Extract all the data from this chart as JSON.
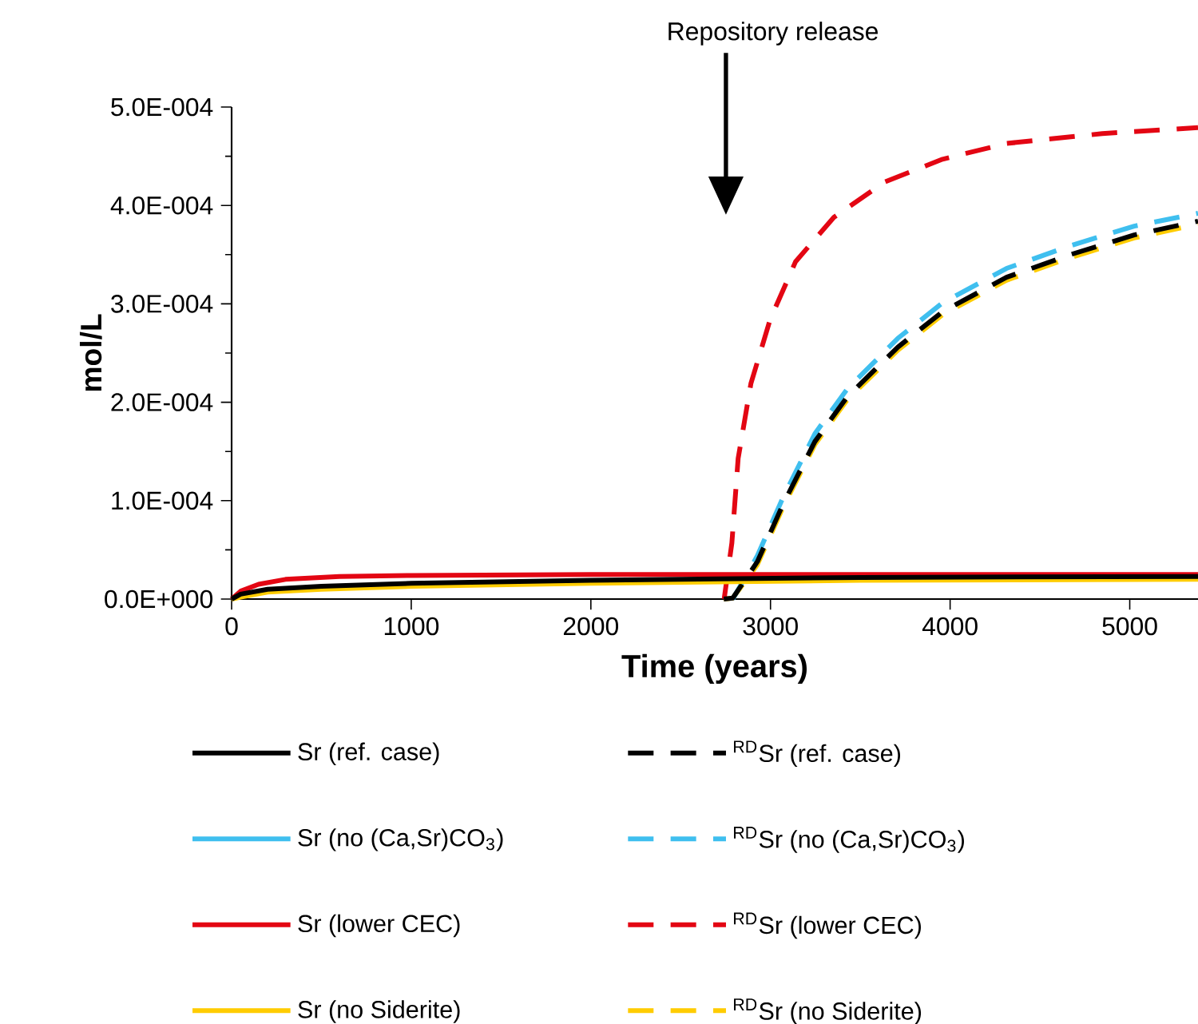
{
  "chart_data": {
    "type": "line",
    "xlabel": "Time (years)",
    "ylabel": "mol/L",
    "annotations": [
      "Repository release"
    ],
    "xlim": [
      0,
      5380
    ],
    "xticks": [
      0,
      1000,
      2000,
      3000,
      4000,
      5000
    ],
    "ylim": [
      0,
      0.0005
    ],
    "yticks": [
      {
        "value": 0,
        "label": "0.0E+000"
      },
      {
        "value": 0.0001,
        "label": "1.0E-004"
      },
      {
        "value": 0.0002,
        "label": "2.0E-004"
      },
      {
        "value": 0.0003,
        "label": "3.0E-004"
      },
      {
        "value": 0.0004,
        "label": "4.0E-004"
      },
      {
        "value": 0.0005,
        "label": "5.0E-004"
      }
    ],
    "legend": "bottom",
    "series": [
      {
        "name": "Sr (ref. case)",
        "color": "#000000",
        "line_style": "solid",
        "x": [
          0,
          50,
          200,
          500,
          1000,
          2000,
          2700,
          3500,
          5380
        ],
        "values": [
          0,
          5e-06,
          1e-05,
          1.3e-05,
          1.6e-05,
          1.9e-05,
          2.05e-05,
          2.2e-05,
          2.3e-05
        ]
      },
      {
        "name": "Sr (no (Ca,Sr)CO$_{3}$)",
        "color": "#3fbfef",
        "line_style": "solid"
      },
      {
        "name": "Sr (lower CEC)",
        "color": "#e30613",
        "line_style": "solid",
        "x": [
          0,
          50,
          150,
          300,
          600,
          1000,
          2000,
          3000,
          5380
        ],
        "values": [
          0,
          8e-06,
          1.5e-05,
          2e-05,
          2.3e-05,
          2.4e-05,
          2.5e-05,
          2.5e-05,
          2.5e-05
        ]
      },
      {
        "name": "Sr (no Siderite)",
        "color": "#ffcc00",
        "line_style": "solid",
        "x": [
          0,
          50,
          200,
          500,
          1000,
          2000,
          2700,
          3500,
          5380
        ],
        "values": [
          0,
          2e-06,
          7e-06,
          1e-05,
          1.3e-05,
          1.6e-05,
          1.75e-05,
          1.9e-05,
          2e-05
        ]
      },
      {
        "name": "$^{RD}$Sr (ref. case)",
        "color": "#000000",
        "line_style": "dashed",
        "x": [
          2740,
          2790,
          2927,
          3069,
          3247,
          3425,
          3709,
          3958,
          4314,
          4669,
          5025,
          5380
        ],
        "values": [
          0,
          1e-06,
          3.8e-05,
          9.6e-05,
          0.00016,
          0.000205,
          0.000256,
          0.000292,
          0.000327,
          0.00035,
          0.00037,
          0.000384
        ]
      },
      {
        "name": "$^{RD}$Sr (no (Ca,Sr)CO$_{3}$)",
        "color": "#3fbfef",
        "line_style": "dashed",
        "x": [
          2790,
          2927,
          3069,
          3247,
          3425,
          3709,
          3958,
          4314,
          4669,
          5025,
          5380
        ],
        "values": [
          0,
          4.4e-05,
          0.000103,
          0.000168,
          0.000213,
          0.000265,
          0.000301,
          0.000336,
          0.000359,
          0.000379,
          0.000392
        ]
      },
      {
        "name": "$^{RD}$Sr (lower CEC)",
        "color": "#e30613",
        "line_style": "dashed",
        "x": [
          2742,
          2785,
          2820,
          2891,
          2998,
          3140,
          3353,
          3638,
          3958,
          4314,
          4847,
          5380
        ],
        "values": [
          0,
          5.7e-05,
          0.000143,
          0.000219,
          0.000284,
          0.000343,
          0.000388,
          0.000424,
          0.000447,
          0.000463,
          0.000473,
          0.000479
        ]
      },
      {
        "name": "$^{RD}$Sr (no Siderite)",
        "color": "#ffcc00",
        "line_style": "dashed",
        "x": [
          2740,
          2790,
          2927,
          3069,
          3247,
          3425,
          3709,
          3958,
          4314,
          4669,
          5025,
          5380
        ],
        "values": [
          0,
          1e-06,
          3.5e-05,
          9.3e-05,
          0.000157,
          0.000202,
          0.000253,
          0.000289,
          0.000324,
          0.000347,
          0.000367,
          0.000381
        ]
      }
    ]
  }
}
